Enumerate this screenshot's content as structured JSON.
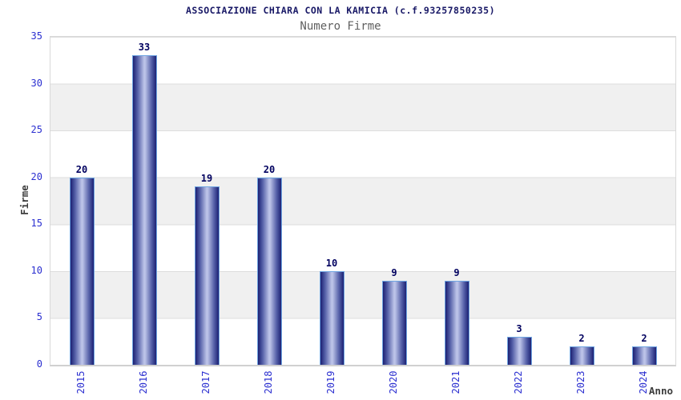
{
  "title": "ASSOCIAZIONE CHIARA CON LA KAMICIA (c.f.93257850235)",
  "subtitle": "Numero Firme",
  "chart_data": {
    "type": "bar",
    "title": "ASSOCIAZIONE CHIARA CON LA KAMICIA (c.f.93257850235)",
    "subtitle": "Numero Firme",
    "categories": [
      "2015",
      "2016",
      "2017",
      "2018",
      "2019",
      "2020",
      "2021",
      "2022",
      "2023",
      "2024"
    ],
    "values": [
      20,
      33,
      19,
      20,
      10,
      9,
      9,
      3,
      2,
      2
    ],
    "xlabel": "Anno",
    "ylabel": "Firme",
    "ylim": [
      0,
      35
    ],
    "yticks": [
      0,
      5,
      10,
      15,
      20,
      25,
      30,
      35
    ],
    "grid": "horizontal-bands-alternating",
    "legend": "none",
    "colors": {
      "bar_dark": "#1c2173",
      "bar_mid": "#5560a8",
      "bar_light": "#bcc3e8",
      "bar_outline": "#6fa5e2",
      "tick_label": "#2b2fd0",
      "value_label": "#00005f",
      "title": "#181866",
      "subtitle": "#606060",
      "axis_title": "#3c3c3c",
      "band_gray": "#f0f0f0",
      "grid_line": "#dcdcdc",
      "background": "#ffffff"
    }
  }
}
